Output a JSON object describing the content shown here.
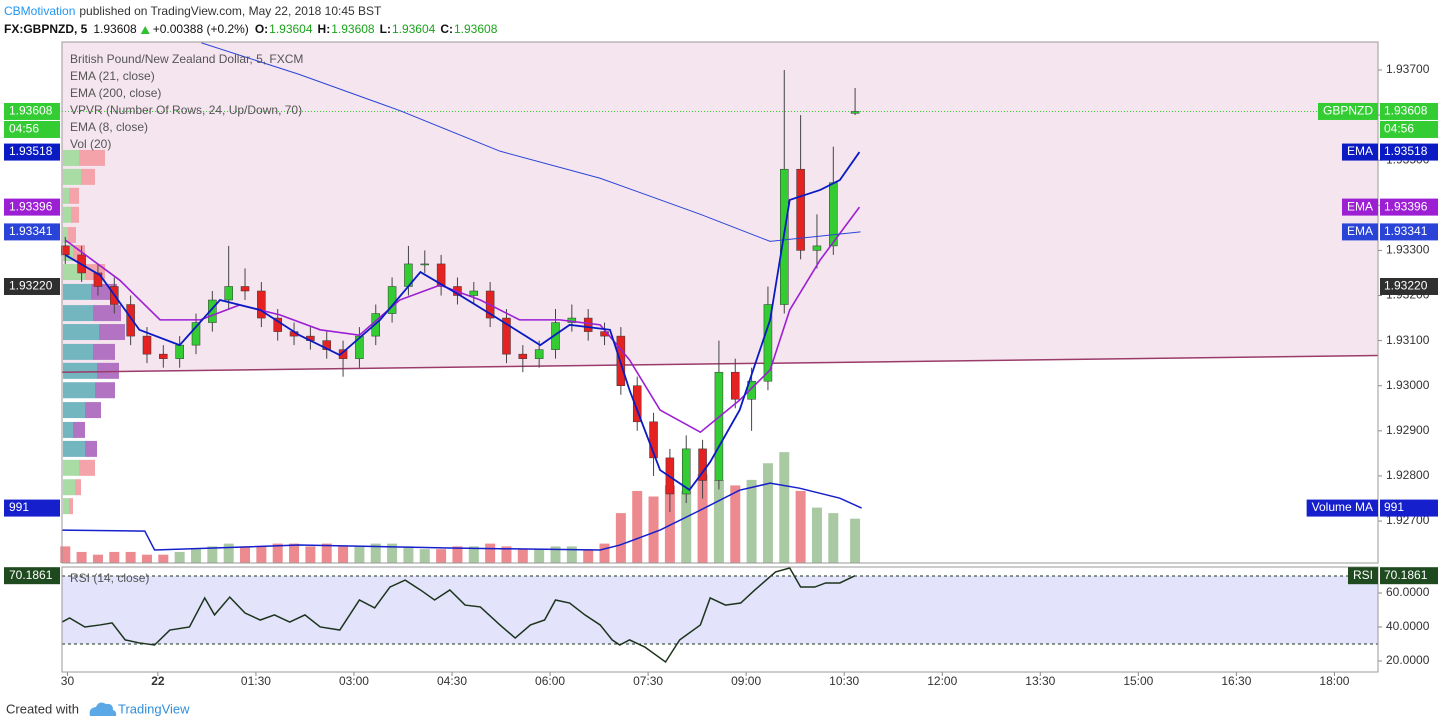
{
  "header": {
    "publisher": "CBMotivation",
    "published": "published on TradingView.com, May 22, 2018 10:45 BST",
    "symbol": "FX:GBPNZD, 5",
    "last": 1.93608,
    "change": "+0.00388 (+0.2%)",
    "ohlc": [
      {
        "key": "O:",
        "value": 1.93604
      },
      {
        "key": "H:",
        "value": 1.93608
      },
      {
        "key": "L:",
        "value": 1.93604
      },
      {
        "key": "C:",
        "value": 1.93608
      }
    ]
  },
  "footer": {
    "created": "Created with",
    "brand": "TradingView"
  },
  "chart_data": [
    {
      "type": "candlestick",
      "title": "British Pound/New Zealand Dollar, 5, FXCM",
      "symbol": "GBPNZD",
      "countdown": "04:56",
      "xlim": [
        -88,
        1120
      ],
      "xticks": [
        {
          "value": -83,
          "label": "30"
        },
        {
          "value": 0,
          "label": "22"
        },
        {
          "value": 90,
          "label": "01:30"
        },
        {
          "value": 180,
          "label": "03:00"
        },
        {
          "value": 270,
          "label": "04:30"
        },
        {
          "value": 360,
          "label": "06:00"
        },
        {
          "value": 450,
          "label": "07:30"
        },
        {
          "value": 540,
          "label": "09:00"
        },
        {
          "value": 630,
          "label": "10:30"
        },
        {
          "value": 720,
          "label": "12:00"
        },
        {
          "value": 810,
          "label": "13:30"
        },
        {
          "value": 900,
          "label": "15:00"
        },
        {
          "value": 990,
          "label": "16:30"
        },
        {
          "value": 1080,
          "label": "18:00"
        }
      ],
      "ylim": [
        1.92607,
        1.93762
      ],
      "yticks": [
        {
          "value": 1.927,
          "label": "1.92700"
        },
        {
          "value": 1.928,
          "label": "1.92800"
        },
        {
          "value": 1.929,
          "label": "1.92900"
        },
        {
          "value": 1.93,
          "label": "1.93000"
        },
        {
          "value": 1.931,
          "label": "1.93100"
        },
        {
          "value": 1.932,
          "label": "1.93200"
        },
        {
          "value": 1.933,
          "label": "1.93300"
        },
        {
          "value": 1.934,
          "label": "1.93400"
        },
        {
          "value": 1.935,
          "label": "1.93500"
        },
        {
          "value": 1.936,
          "label": "1.93600"
        },
        {
          "value": 1.937,
          "label": "1.93700"
        }
      ],
      "up_color": "#33cc33",
      "down_color": "#e52222",
      "wick_color": "#444444",
      "x": [
        -85,
        -70,
        -55,
        -40,
        -25,
        -10,
        5,
        20,
        35,
        50,
        65,
        80,
        95,
        110,
        125,
        140,
        155,
        170,
        185,
        200,
        215,
        230,
        245,
        260,
        275,
        290,
        305,
        320,
        335,
        350,
        365,
        380,
        395,
        410,
        425,
        440,
        455,
        470,
        485,
        500,
        515,
        530,
        545,
        560,
        575,
        590,
        605,
        620,
        640
      ],
      "open": [
        1.9331,
        1.9329,
        1.9325,
        1.9322,
        1.9318,
        1.9311,
        1.9307,
        1.9306,
        1.9309,
        1.9314,
        1.9319,
        1.9322,
        1.9321,
        1.9315,
        1.9312,
        1.9311,
        1.931,
        1.9308,
        1.9306,
        1.9311,
        1.9316,
        1.9322,
        1.9327,
        1.9327,
        1.9322,
        1.932,
        1.9321,
        1.9315,
        1.9307,
        1.9306,
        1.9308,
        1.9314,
        1.9315,
        1.9312,
        1.9311,
        1.93,
        1.9292,
        1.9284,
        1.9276,
        1.9286,
        1.9279,
        1.9303,
        1.9297,
        1.9301,
        1.9318,
        1.9348,
        1.933,
        1.9331,
        1.93604
      ],
      "high": [
        1.9333,
        1.9331,
        1.9327,
        1.9324,
        1.932,
        1.9313,
        1.9309,
        1.9311,
        1.9316,
        1.9321,
        1.9331,
        1.9326,
        1.9323,
        1.9317,
        1.9314,
        1.9313,
        1.9312,
        1.931,
        1.9313,
        1.9318,
        1.9324,
        1.9331,
        1.933,
        1.9329,
        1.9324,
        1.9323,
        1.9323,
        1.9317,
        1.9309,
        1.931,
        1.9317,
        1.9318,
        1.9317,
        1.9314,
        1.9313,
        1.9302,
        1.9294,
        1.9286,
        1.9289,
        1.9288,
        1.931,
        1.9306,
        1.9304,
        1.9322,
        1.937,
        1.936,
        1.9338,
        1.9353,
        1.9366
      ],
      "low": [
        1.9327,
        1.9323,
        1.932,
        1.9316,
        1.9309,
        1.9305,
        1.9304,
        1.9304,
        1.9307,
        1.9312,
        1.9317,
        1.9319,
        1.9313,
        1.931,
        1.9309,
        1.9308,
        1.9306,
        1.9302,
        1.9304,
        1.9309,
        1.9314,
        1.932,
        1.9325,
        1.932,
        1.9318,
        1.9318,
        1.9313,
        1.9305,
        1.9303,
        1.9304,
        1.9306,
        1.9312,
        1.931,
        1.9309,
        1.9298,
        1.929,
        1.928,
        1.9272,
        1.9274,
        1.9275,
        1.9277,
        1.9295,
        1.929,
        1.9299,
        1.9316,
        1.9328,
        1.9326,
        1.9329,
        1.936
      ],
      "close": [
        1.9329,
        1.9325,
        1.9322,
        1.9318,
        1.9311,
        1.9307,
        1.9306,
        1.9309,
        1.9314,
        1.9319,
        1.9322,
        1.9321,
        1.9315,
        1.9312,
        1.9311,
        1.931,
        1.9308,
        1.9306,
        1.9311,
        1.9316,
        1.9322,
        1.9327,
        1.9327,
        1.9322,
        1.932,
        1.9321,
        1.9315,
        1.9307,
        1.9306,
        1.9308,
        1.9314,
        1.9315,
        1.9312,
        1.9311,
        1.93,
        1.9292,
        1.9284,
        1.9276,
        1.9286,
        1.9279,
        1.9303,
        1.9297,
        1.9301,
        1.9318,
        1.9348,
        1.933,
        1.9331,
        1.9345,
        1.93608
      ],
      "series": [
        {
          "name": "EMA (21, close)",
          "tag": "EMA",
          "color": "#9c1fd4",
          "width": 1.6,
          "x": [
            -85,
            -35,
            2,
            39,
            75,
            112,
            149,
            185,
            222,
            259,
            296,
            332,
            369,
            406,
            433,
            461,
            498,
            534,
            562,
            580,
            608,
            644
          ],
          "values": [
            1.93323,
            1.93234,
            1.93146,
            1.93146,
            1.93179,
            1.93157,
            1.93124,
            1.93112,
            1.9319,
            1.93223,
            1.9319,
            1.93146,
            1.93146,
            1.93135,
            1.93057,
            1.92946,
            1.92897,
            1.92968,
            1.93035,
            1.93168,
            1.93279,
            1.93396
          ]
        },
        {
          "name": "EMA (200, close)",
          "tag": "EMA",
          "color": "#2a44d8",
          "width": 1,
          "x": [
            40,
            130,
            222,
            314,
            406,
            498,
            562,
            645
          ],
          "values": [
            1.9376,
            1.9369,
            1.9361,
            1.9352,
            1.9346,
            1.9338,
            1.9332,
            1.93341
          ]
        },
        {
          "name": "EMA (8, close)",
          "tag": "EMA",
          "color": "#0b1bc4",
          "width": 1.8,
          "x": [
            -85,
            -53,
            -17,
            20,
            57,
            94,
            130,
            167,
            204,
            241,
            277,
            314,
            351,
            378,
            415,
            433,
            461,
            488,
            507,
            534,
            562,
            580,
            608,
            626,
            644
          ],
          "values": [
            1.9329,
            1.93245,
            1.93124,
            1.9309,
            1.9319,
            1.93168,
            1.93112,
            1.93068,
            1.93146,
            1.93252,
            1.93201,
            1.93146,
            1.9309,
            1.93135,
            1.93124,
            1.9299,
            1.92813,
            1.92769,
            1.92831,
            1.92946,
            1.93146,
            1.93412,
            1.93434,
            1.93456,
            1.93518
          ]
        }
      ],
      "trendline": {
        "color": "#9a3b6a",
        "fill": "#f5e5ef",
        "x": [
          -88,
          1120
        ],
        "values": [
          1.9303,
          1.93067
        ]
      },
      "poc": {
        "value": 1.9322,
        "label": "1.93220"
      },
      "vpvr": {
        "name": "VPVR (Number Of Rows, 24, Up/Down, 70)",
        "up_color": "#a8dca4",
        "down_color": "#f4a3aa",
        "va_up_color": "#74b6c0",
        "va_down_color": "#b274c2",
        "rows": [
          {
            "price": 1.93505,
            "up": 16,
            "down": 26,
            "value_area": false
          },
          {
            "price": 1.93463,
            "up": 18,
            "down": 14,
            "value_area": false
          },
          {
            "price": 1.93421,
            "up": 6,
            "down": 10,
            "value_area": false
          },
          {
            "price": 1.93379,
            "up": 8,
            "down": 8,
            "value_area": false
          },
          {
            "price": 1.93334,
            "up": 5,
            "down": 8,
            "value_area": false
          },
          {
            "price": 1.93294,
            "up": 10,
            "down": 12,
            "value_area": false
          },
          {
            "price": 1.93252,
            "up": 22,
            "down": 20,
            "value_area": false
          },
          {
            "price": 1.93208,
            "up": 28,
            "down": 26,
            "value_area": true
          },
          {
            "price": 1.93161,
            "up": 30,
            "down": 28,
            "value_area": true
          },
          {
            "price": 1.93119,
            "up": 36,
            "down": 26,
            "value_area": true
          },
          {
            "price": 1.93075,
            "up": 30,
            "down": 22,
            "value_area": true
          },
          {
            "price": 1.93033,
            "up": 34,
            "down": 22,
            "value_area": true
          },
          {
            "price": 1.9299,
            "up": 32,
            "down": 20,
            "value_area": true
          },
          {
            "price": 1.92946,
            "up": 22,
            "down": 16,
            "value_area": true
          },
          {
            "price": 1.92902,
            "up": 10,
            "down": 12,
            "value_area": true
          },
          {
            "price": 1.9286,
            "up": 22,
            "down": 12,
            "value_area": true
          },
          {
            "price": 1.92818,
            "up": 16,
            "down": 16,
            "value_area": false
          },
          {
            "price": 1.92775,
            "up": 12,
            "down": 6,
            "value_area": false
          },
          {
            "price": 1.92733,
            "up": 6,
            "down": 4,
            "value_area": false
          }
        ]
      },
      "volume": {
        "name": "Vol (20)",
        "ylim": [
          0,
          9400
        ],
        "up_color": "#a9c9a3",
        "down_color": "#ec8a90",
        "values": [
          300,
          200,
          150,
          200,
          200,
          150,
          150,
          200,
          250,
          300,
          350,
          300,
          300,
          350,
          350,
          300,
          350,
          300,
          300,
          350,
          350,
          300,
          250,
          250,
          300,
          300,
          350,
          300,
          250,
          250,
          300,
          300,
          250,
          350,
          900,
          1300,
          1200,
          1400,
          1300,
          1600,
          1500,
          1400,
          1500,
          1800,
          2000,
          1300,
          1000,
          900,
          800
        ],
        "ma": {
          "tag": "Volume MA",
          "color": "#1520cc",
          "x": [
            -88,
            -12,
            -3,
            130,
            268,
            406,
            424,
            461,
            498,
            534,
            562,
            589,
            626,
            646
          ],
          "values": [
            594,
            576,
            234,
            324,
            270,
            234,
            324,
            594,
            954,
            1314,
            1440,
            1350,
            1170,
            991
          ]
        }
      }
    },
    {
      "type": "line",
      "ylim": [
        13.5,
        75.3
      ],
      "yticks": [
        {
          "value": 60,
          "label": "60.0000"
        },
        {
          "value": 40,
          "label": "40.0000"
        },
        {
          "value": 20,
          "label": "20.0000"
        }
      ],
      "bands": [
        30,
        70
      ],
      "band_fill": "#e3e3fb",
      "series": [
        {
          "name": "RSI (14, close)",
          "tag": "RSI",
          "color": "#1c331c",
          "x": [
            -88,
            -81,
            -67,
            -53,
            -42,
            -30,
            -17,
            -3,
            11,
            29,
            43,
            52,
            66,
            80,
            94,
            107,
            121,
            135,
            149,
            167,
            185,
            199,
            213,
            227,
            241,
            254,
            268,
            282,
            296,
            314,
            328,
            342,
            355,
            365,
            378,
            392,
            406,
            417,
            424,
            433,
            447,
            466,
            479,
            498,
            507,
            521,
            535,
            548,
            567,
            580,
            590,
            603,
            613,
            626,
            640
          ],
          "values": [
            42.9,
            45.3,
            40.0,
            41.2,
            42.4,
            32.4,
            30.6,
            29.4,
            38.2,
            40.0,
            57.1,
            47.1,
            57.6,
            48.2,
            44.1,
            47.1,
            42.9,
            47.1,
            40.0,
            38.2,
            55.9,
            51.2,
            63.5,
            67.6,
            61.8,
            55.9,
            61.8,
            52.9,
            51.8,
            41.2,
            33.5,
            41.2,
            44.1,
            55.9,
            54.1,
            47.1,
            41.2,
            32.4,
            29.4,
            32.4,
            28.2,
            19.4,
            32.4,
            41.2,
            57.1,
            52.9,
            54.1,
            61.8,
            72.4,
            74.7,
            63.5,
            63.5,
            65.9,
            65.9,
            70.1861
          ]
        }
      ]
    }
  ]
}
